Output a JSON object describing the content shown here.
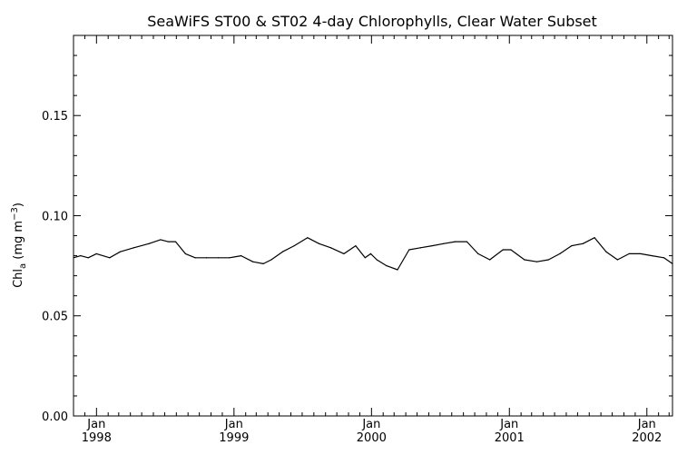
{
  "chart_data": {
    "type": "line",
    "title": "SeaWiFS ST00 & ST02 4-day Chlorophylls, Clear Water Subset",
    "ylabel": {
      "prefix": "Chl",
      "subscript": "a",
      "units_open": " (mg m",
      "units_superscript": "−3",
      "units_close": ")"
    },
    "ylim": [
      0.0,
      0.19
    ],
    "xlim": [
      "1997-11-01",
      "2002-03-10"
    ],
    "yticks": [
      {
        "value": 0.0,
        "label": "0.00"
      },
      {
        "value": 0.05,
        "label": "0.05"
      },
      {
        "value": 0.1,
        "label": "0.10"
      },
      {
        "value": 0.15,
        "label": "0.15"
      }
    ],
    "xticks": [
      {
        "date": "1998-01-01",
        "month": "Jan",
        "year": "1998"
      },
      {
        "date": "1999-01-01",
        "month": "Jan",
        "year": "1999"
      },
      {
        "date": "2000-01-01",
        "month": "Jan",
        "year": "2000"
      },
      {
        "date": "2001-01-01",
        "month": "Jan",
        "year": "2001"
      },
      {
        "date": "2002-01-01",
        "month": "Jan",
        "year": "2002"
      }
    ],
    "grid": false,
    "series": [
      {
        "x": [
          "1997-11-01",
          "1997-11-20",
          "1997-12-10",
          "1998-01-01",
          "1998-02-05",
          "1998-03-05",
          "1998-04-10",
          "1998-05-20",
          "1998-06-20",
          "1998-07-10",
          "1998-07-30",
          "1998-08-25",
          "1998-09-20",
          "1998-10-20",
          "1998-11-20",
          "1998-12-20",
          "1999-01-20",
          "1999-02-20",
          "1999-03-20",
          "1999-04-10",
          "1999-05-10",
          "1999-06-10",
          "1999-07-15",
          "1999-08-15",
          "1999-09-15",
          "1999-10-20",
          "1999-11-20",
          "1999-12-15",
          "1999-12-30",
          "2000-01-15",
          "2000-02-10",
          "2000-03-10",
          "2000-04-10",
          "2000-05-10",
          "2000-06-10",
          "2000-07-10",
          "2000-08-10",
          "2000-09-10",
          "2000-10-10",
          "2000-11-10",
          "2000-12-15",
          "2001-01-05",
          "2001-02-10",
          "2001-03-15",
          "2001-04-15",
          "2001-05-15",
          "2001-06-15",
          "2001-07-15",
          "2001-08-15",
          "2001-09-15",
          "2001-10-15",
          "2001-11-15",
          "2001-12-15",
          "2002-01-15",
          "2002-02-15",
          "2002-03-10"
        ],
        "y": [
          0.079,
          0.08,
          0.079,
          0.081,
          0.079,
          0.082,
          0.084,
          0.086,
          0.088,
          0.087,
          0.087,
          0.081,
          0.079,
          0.079,
          0.079,
          0.079,
          0.08,
          0.077,
          0.076,
          0.078,
          0.082,
          0.085,
          0.089,
          0.086,
          0.084,
          0.081,
          0.085,
          0.079,
          0.081,
          0.078,
          0.075,
          0.073,
          0.083,
          0.084,
          0.085,
          0.086,
          0.087,
          0.087,
          0.081,
          0.078,
          0.083,
          0.083,
          0.078,
          0.077,
          0.078,
          0.081,
          0.085,
          0.086,
          0.089,
          0.082,
          0.078,
          0.081,
          0.081,
          0.08,
          0.079,
          0.076
        ]
      }
    ]
  }
}
